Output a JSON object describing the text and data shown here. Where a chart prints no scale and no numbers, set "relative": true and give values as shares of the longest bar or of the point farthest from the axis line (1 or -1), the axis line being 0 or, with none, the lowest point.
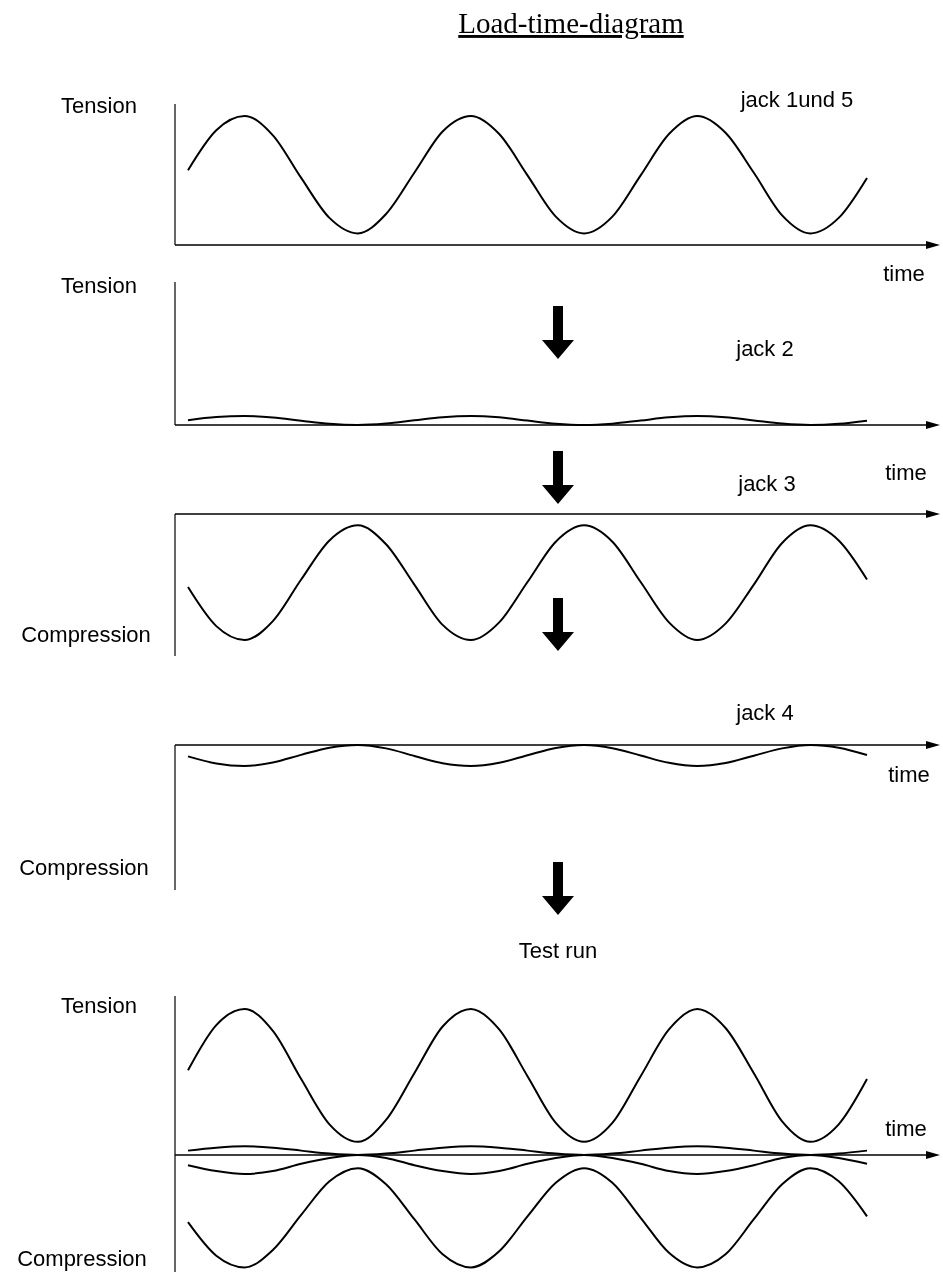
{
  "chart_data": [
    {
      "type": "line",
      "relative": true,
      "title": "Load-time-diagram",
      "subtitle": "jack 1und 5",
      "ylabel": "Tension",
      "xlabel": "time",
      "categories": [
        null,
        null,
        null,
        null,
        null,
        null,
        null,
        null,
        null,
        null,
        null,
        null,
        null,
        null,
        null,
        null,
        null,
        null,
        null,
        null,
        null,
        null,
        null,
        null,
        null
      ],
      "series": [
        {
          "color": "#000000",
          "values": [
            0.58,
            0.89,
            1.0,
            0.85,
            0.52,
            0.21,
            0.09,
            0.24,
            0.56,
            0.88,
            1.0,
            0.86,
            0.54,
            0.22,
            0.09,
            0.22,
            0.54,
            0.86,
            1.0,
            0.87,
            0.56,
            0.23,
            0.09,
            0.21,
            0.52
          ]
        }
      ]
    },
    {
      "type": "line",
      "relative": true,
      "subtitle": "jack 2",
      "ylabel": "Tension",
      "xlabel": "time",
      "categories": [
        null,
        null,
        null,
        null,
        null,
        null,
        null,
        null,
        null,
        null,
        null,
        null,
        null,
        null,
        null,
        null,
        null,
        null,
        null,
        null,
        null,
        null,
        null,
        null,
        null
      ],
      "series": [
        {
          "color": "#000000",
          "values": [
            0.54,
            0.88,
            1.0,
            0.83,
            0.47,
            0.13,
            0.0,
            0.16,
            0.52,
            0.87,
            1.0,
            0.85,
            0.49,
            0.14,
            0.0,
            0.15,
            0.5,
            0.85,
            1.0,
            0.86,
            0.51,
            0.16,
            0.0,
            0.13,
            0.48
          ]
        }
      ]
    },
    {
      "type": "line",
      "relative": true,
      "subtitle": "jack 3",
      "annotations": [
        "Compression"
      ],
      "categories": [
        null,
        null,
        null,
        null,
        null,
        null,
        null,
        null,
        null,
        null,
        null,
        null,
        null,
        null,
        null,
        null,
        null,
        null,
        null,
        null,
        null,
        null,
        null,
        null,
        null
      ],
      "series": [
        {
          "color": "#000000",
          "values": [
            -0.58,
            -0.89,
            -1.0,
            -0.85,
            -0.52,
            -0.21,
            -0.09,
            -0.24,
            -0.56,
            -0.88,
            -1.0,
            -0.86,
            -0.54,
            -0.22,
            -0.09,
            -0.22,
            -0.54,
            -0.86,
            -1.0,
            -0.87,
            -0.56,
            -0.23,
            -0.09,
            -0.21,
            -0.52
          ]
        }
      ]
    },
    {
      "type": "line",
      "relative": true,
      "subtitle": "jack 4",
      "xlabel": "time",
      "annotations": [
        "Compression"
      ],
      "categories": [
        null,
        null,
        null,
        null,
        null,
        null,
        null,
        null,
        null,
        null,
        null,
        null,
        null,
        null,
        null,
        null,
        null,
        null,
        null,
        null,
        null,
        null,
        null,
        null,
        null
      ],
      "series": [
        {
          "color": "#000000",
          "values": [
            -0.54,
            -0.88,
            -1.0,
            -0.83,
            -0.47,
            -0.13,
            0.0,
            -0.16,
            -0.52,
            -0.87,
            -1.0,
            -0.85,
            -0.49,
            -0.14,
            0.0,
            -0.15,
            -0.5,
            -0.85,
            -1.0,
            -0.86,
            -0.51,
            -0.16,
            0.0,
            -0.13,
            -0.48
          ]
        }
      ]
    },
    {
      "type": "line",
      "relative": true,
      "title": "Test run",
      "ylabel": "Tension",
      "xlabel": "time",
      "annotations": [
        "Compression"
      ],
      "categories": [
        null,
        null,
        null,
        null,
        null,
        null,
        null,
        null,
        null,
        null,
        null,
        null,
        null,
        null,
        null,
        null,
        null,
        null,
        null,
        null,
        null,
        null,
        null,
        null,
        null
      ],
      "series": [
        {
          "color": "#000000",
          "values": [
            0.58,
            0.89,
            1.0,
            0.85,
            0.52,
            0.21,
            0.09,
            0.24,
            0.56,
            0.88,
            1.0,
            0.86,
            0.54,
            0.22,
            0.09,
            0.22,
            0.54,
            0.86,
            1.0,
            0.87,
            0.56,
            0.23,
            0.09,
            0.21,
            0.52
          ]
        },
        {
          "color": "#000000",
          "values": [
            0.03,
            0.05,
            0.06,
            0.05,
            0.03,
            0.01,
            0.0,
            0.01,
            0.03,
            0.05,
            0.06,
            0.05,
            0.03,
            0.01,
            0.0,
            0.01,
            0.03,
            0.05,
            0.06,
            0.05,
            0.03,
            0.01,
            0.0,
            0.01,
            0.03
          ]
        },
        {
          "color": "#000000",
          "values": [
            -0.46,
            -0.69,
            -0.77,
            -0.65,
            -0.41,
            -0.18,
            -0.09,
            -0.2,
            -0.44,
            -0.68,
            -0.77,
            -0.66,
            -0.42,
            -0.19,
            -0.09,
            -0.19,
            -0.43,
            -0.67,
            -0.77,
            -0.68,
            -0.44,
            -0.2,
            -0.09,
            -0.18,
            -0.42
          ]
        },
        {
          "color": "#000000",
          "values": [
            -0.07,
            -0.11,
            -0.13,
            -0.11,
            -0.06,
            -0.02,
            0.0,
            -0.02,
            -0.07,
            -0.11,
            -0.13,
            -0.11,
            -0.06,
            -0.02,
            0.0,
            -0.02,
            -0.06,
            -0.11,
            -0.13,
            -0.11,
            -0.07,
            -0.02,
            0.0,
            -0.02,
            -0.06
          ]
        }
      ]
    }
  ]
}
